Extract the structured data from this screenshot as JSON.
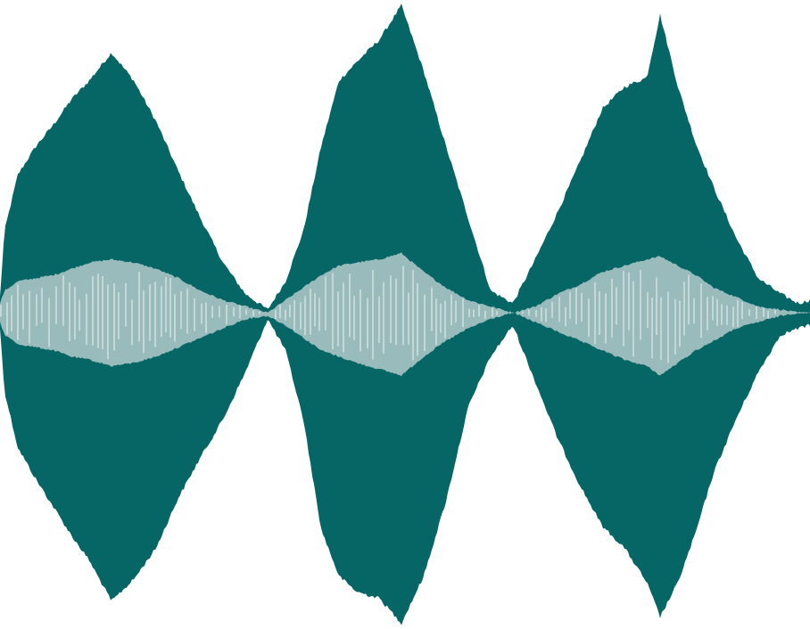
{
  "chart_data": {
    "type": "area",
    "title": "",
    "xlabel": "",
    "ylabel": "",
    "grid": false,
    "legend": false,
    "xlim": [
      0,
      908
    ],
    "ylim": [
      -1,
      1
    ],
    "series": [
      {
        "role": "envelope-outer",
        "color": "#066666",
        "x": [
          0,
          5,
          20,
          40,
          60,
          80,
          100,
          125,
          150,
          175,
          200,
          225,
          250,
          275,
          300,
          320,
          340,
          360,
          380,
          400,
          425,
          450,
          475,
          500,
          525,
          550,
          575,
          600,
          625,
          650,
          675,
          700,
          725,
          740,
          760,
          780,
          800,
          825,
          850,
          875,
          895,
          908
        ],
        "upper": [
          0.05,
          0.26,
          0.44,
          0.53,
          0.6,
          0.68,
          0.74,
          0.83,
          0.74,
          0.61,
          0.45,
          0.3,
          0.16,
          0.06,
          0.01,
          0.1,
          0.26,
          0.53,
          0.74,
          0.8,
          0.87,
          0.98,
          0.77,
          0.53,
          0.3,
          0.07,
          0.03,
          0.17,
          0.32,
          0.48,
          0.65,
          0.72,
          0.75,
          0.95,
          0.72,
          0.54,
          0.4,
          0.24,
          0.11,
          0.06,
          0.03,
          0.04
        ],
        "lower": [
          -0.05,
          -0.25,
          -0.43,
          -0.53,
          -0.62,
          -0.71,
          -0.79,
          -0.92,
          -0.85,
          -0.75,
          -0.59,
          -0.46,
          -0.34,
          -0.19,
          -0.02,
          -0.12,
          -0.34,
          -0.69,
          -0.84,
          -0.89,
          -0.91,
          -0.99,
          -0.84,
          -0.6,
          -0.3,
          -0.14,
          -0.04,
          -0.22,
          -0.4,
          -0.55,
          -0.68,
          -0.75,
          -0.86,
          -0.97,
          -0.86,
          -0.7,
          -0.51,
          -0.34,
          -0.19,
          -0.07,
          -0.05,
          -0.04
        ]
      },
      {
        "role": "envelope-inner",
        "color": "#99bbbb",
        "x": [
          0,
          5,
          20,
          40,
          60,
          80,
          100,
          125,
          150,
          175,
          200,
          225,
          250,
          275,
          300,
          320,
          340,
          360,
          380,
          400,
          425,
          450,
          475,
          500,
          525,
          550,
          575,
          600,
          625,
          650,
          675,
          700,
          725,
          740,
          760,
          780,
          800,
          825,
          850,
          875,
          895,
          908
        ],
        "upper": [
          0.03,
          0.07,
          0.1,
          0.11,
          0.12,
          0.14,
          0.16,
          0.17,
          0.16,
          0.14,
          0.11,
          0.07,
          0.04,
          0.02,
          0.0,
          0.04,
          0.08,
          0.12,
          0.15,
          0.16,
          0.17,
          0.19,
          0.13,
          0.08,
          0.04,
          0.02,
          0.0,
          0.02,
          0.06,
          0.09,
          0.13,
          0.15,
          0.17,
          0.18,
          0.15,
          0.12,
          0.08,
          0.05,
          0.02,
          0.01,
          0.0,
          0.0
        ],
        "lower": [
          -0.03,
          -0.07,
          -0.1,
          -0.11,
          -0.12,
          -0.14,
          -0.15,
          -0.17,
          -0.16,
          -0.14,
          -0.11,
          -0.08,
          -0.05,
          -0.02,
          -0.01,
          -0.04,
          -0.08,
          -0.12,
          -0.14,
          -0.16,
          -0.18,
          -0.2,
          -0.14,
          -0.09,
          -0.05,
          -0.02,
          -0.0,
          -0.03,
          -0.06,
          -0.09,
          -0.12,
          -0.15,
          -0.17,
          -0.2,
          -0.16,
          -0.12,
          -0.09,
          -0.05,
          -0.03,
          -0.01,
          -0.0,
          -0.0
        ]
      }
    ]
  }
}
